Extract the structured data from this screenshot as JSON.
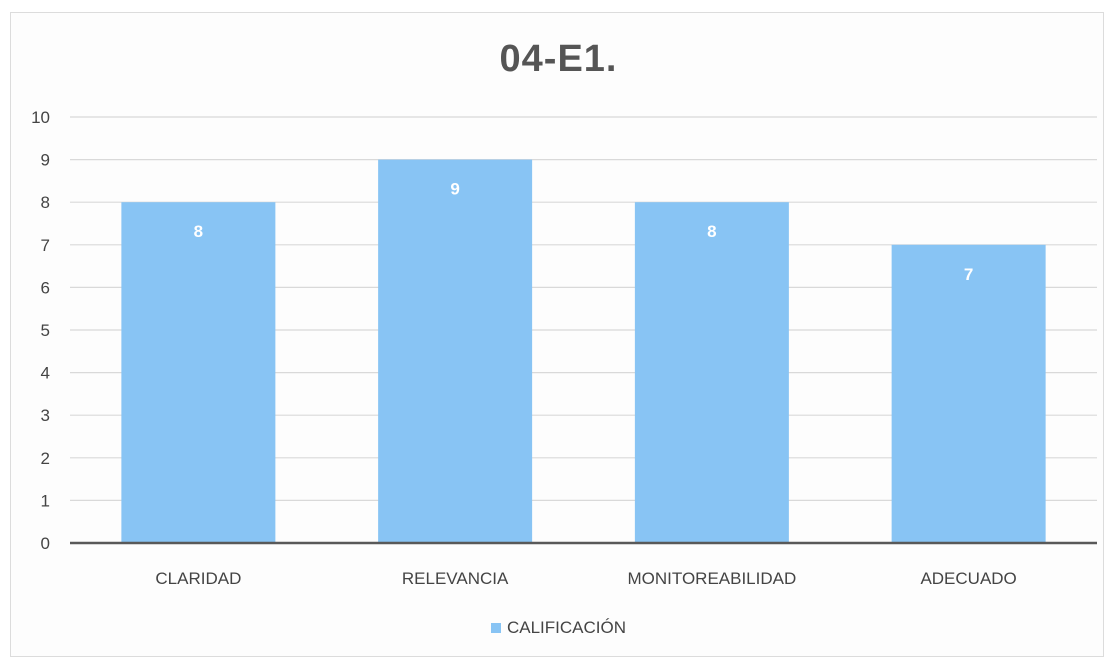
{
  "chart_data": {
    "type": "bar",
    "title": "04-E1.",
    "categories": [
      "CLARIDAD",
      "RELEVANCIA",
      "MONITOREABILIDAD",
      "ADECUADO"
    ],
    "series": [
      {
        "name": "CALIFICACIÓN",
        "values": [
          8,
          9,
          8,
          7
        ]
      }
    ],
    "data_labels": [
      "8",
      "9",
      "8",
      "7"
    ],
    "ylim": [
      0,
      10
    ],
    "yticks": [
      0,
      1,
      2,
      3,
      4,
      5,
      6,
      7,
      8,
      9,
      10
    ],
    "grid": true,
    "legend_position": "bottom",
    "bar_color": "#88c4f4",
    "label_color": "#ffffff",
    "grid_color": "#d9d9d9",
    "axis_color": "#595959"
  }
}
